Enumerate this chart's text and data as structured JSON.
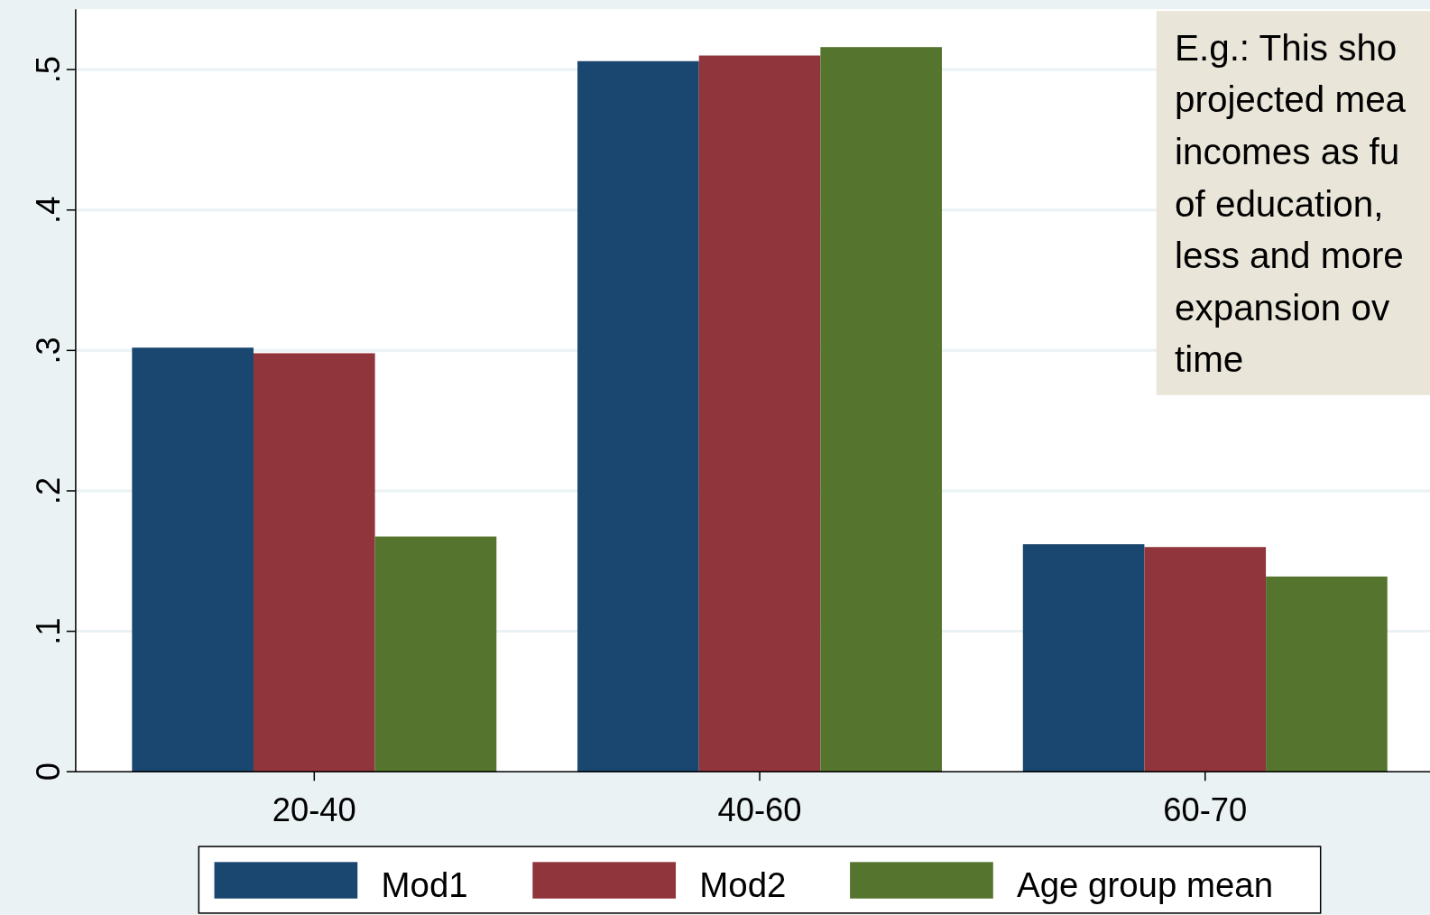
{
  "chart_data": {
    "type": "bar",
    "categories": [
      "20-40",
      "40-60",
      "60-70"
    ],
    "series": [
      {
        "name": "Mod1",
        "color": "#1a476f",
        "values": [
          0.302,
          0.506,
          0.162
        ]
      },
      {
        "name": "Mod2",
        "color": "#90353b",
        "values": [
          0.298,
          0.51,
          0.16
        ]
      },
      {
        "name": "Age group mean",
        "color": "#55752f",
        "values": [
          0.1675,
          0.516,
          0.139
        ]
      }
    ],
    "ylim": [
      0,
      0.543
    ],
    "yticks": [
      {
        "value": 0,
        "label": "0"
      },
      {
        "value": 0.1,
        "label": ".1"
      },
      {
        "value": 0.2,
        "label": ".2"
      },
      {
        "value": 0.3,
        "label": ".3"
      },
      {
        "value": 0.4,
        "label": ".4"
      },
      {
        "value": 0.5,
        "label": ".5"
      }
    ],
    "grid": "y",
    "legend": "bottom",
    "annotations": [
      "E.g.: This sho\nprojected mea\nincomes as fu\nof education,\nless and more\nexpansion ov\ntime"
    ]
  }
}
